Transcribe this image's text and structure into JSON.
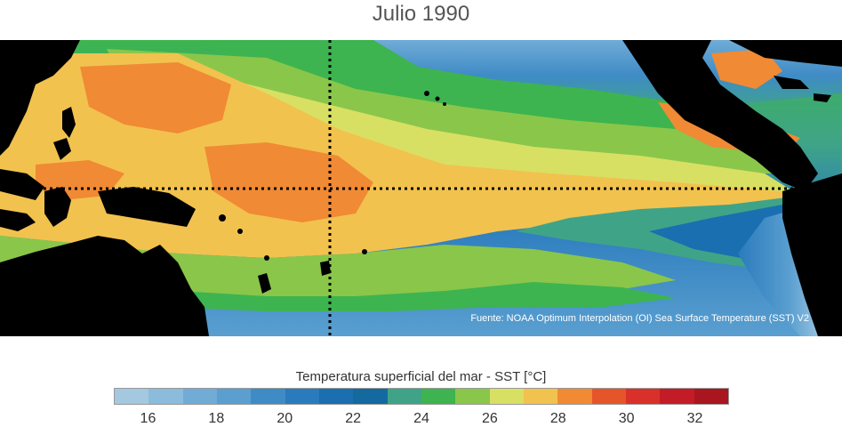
{
  "title": "Julio 1990",
  "source": "Fuente: NOAA Optimum Interpolation (OI) Sea Surface Temperature (SST) V2",
  "colorbar": {
    "title": "Temperatura superficial del mar - SST  [°C]",
    "min": 15,
    "max": 33,
    "colors": [
      "#a4c8e0",
      "#8bbcdc",
      "#70acd6",
      "#5a9fd0",
      "#3f8bc6",
      "#2a7bbd",
      "#1a6fb0",
      "#146a9f",
      "#3fa487",
      "#3db44f",
      "#8ac64a",
      "#d8e064",
      "#f2c24e",
      "#f08a34",
      "#e6542a",
      "#d9302a",
      "#c41c26",
      "#a9161f"
    ],
    "ticks": [
      "16",
      "18",
      "20",
      "22",
      "24",
      "26",
      "28",
      "30",
      "32"
    ]
  }
}
